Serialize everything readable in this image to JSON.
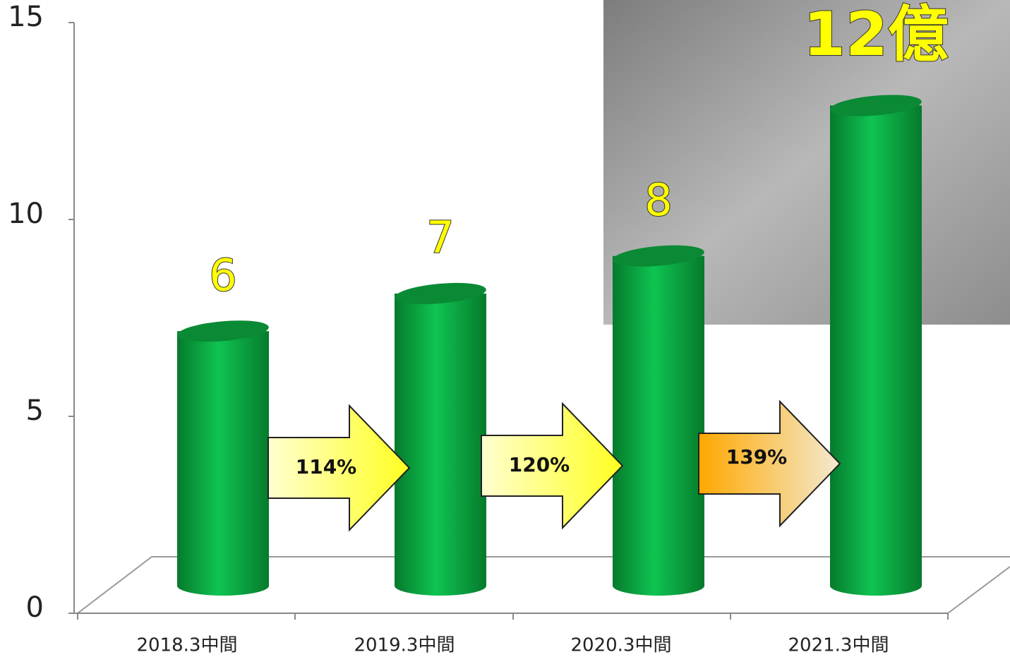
{
  "chart_data": {
    "type": "bar",
    "categories": [
      "2018.3中間",
      "2019.3中間",
      "2020.3中間",
      "2021.3中間"
    ],
    "values": [
      6,
      7,
      8,
      12
    ],
    "value_labels": [
      "6",
      "7",
      "8",
      "12億"
    ],
    "color": "#0bb347",
    "ylim": [
      0,
      15
    ],
    "yticks": [
      0,
      5,
      10,
      15
    ],
    "annotations": [
      "114%",
      "120%",
      "139%"
    ]
  }
}
